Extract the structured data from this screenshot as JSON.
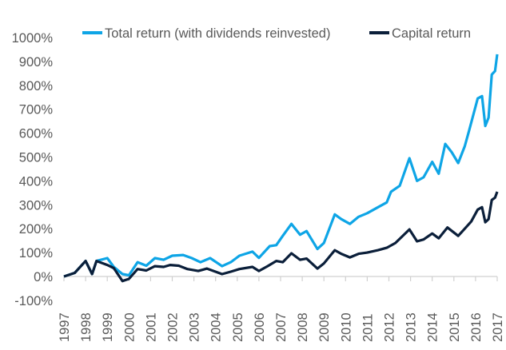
{
  "chart_data": {
    "type": "line",
    "title": "",
    "xlabel": "",
    "ylabel": "",
    "xlim": [
      1997,
      2017
    ],
    "ylim": [
      -100,
      1000
    ],
    "y_ticks": [
      -100,
      0,
      100,
      200,
      300,
      400,
      500,
      600,
      700,
      800,
      900,
      1000
    ],
    "y_tick_labels": [
      "-100%",
      "0%",
      "100%",
      "200%",
      "300%",
      "400%",
      "500%",
      "600%",
      "700%",
      "800%",
      "900%",
      "1000%"
    ],
    "x_tick_labels": [
      "1997",
      "1998",
      "1999",
      "2000",
      "2001",
      "2002",
      "2003",
      "2004",
      "2005",
      "2006",
      "2007",
      "2008",
      "2009",
      "2010",
      "2011",
      "2012",
      "2013",
      "2014",
      "2015",
      "2016",
      "2017"
    ],
    "grid": false,
    "legend_position": "top",
    "series": [
      {
        "name": "Total return (with dividends reinvested)",
        "color": "#0ea5e6",
        "x": [
          1997.0,
          1997.5,
          1998.0,
          1998.3,
          1998.5,
          1999.0,
          1999.3,
          1999.7,
          2000.0,
          2000.4,
          2000.8,
          2001.2,
          2001.6,
          2002.0,
          2002.5,
          2002.9,
          2003.3,
          2003.75,
          2004.3,
          2004.7,
          2005.1,
          2005.7,
          2006.0,
          2006.5,
          2006.8,
          2007.1,
          2007.5,
          2007.9,
          2008.2,
          2008.7,
          2009.0,
          2009.5,
          2009.8,
          2010.2,
          2010.6,
          2011.0,
          2011.5,
          2011.9,
          2012.1,
          2012.5,
          2012.95,
          2013.3,
          2013.6,
          2014.0,
          2014.3,
          2014.6,
          2014.9,
          2015.2,
          2015.5,
          2015.7,
          2016.1,
          2016.3,
          2016.45,
          2016.6,
          2016.75,
          2016.9,
          2017.0
        ],
        "y": [
          0,
          15,
          65,
          10,
          65,
          77,
          40,
          10,
          5,
          60,
          45,
          77,
          70,
          87,
          90,
          77,
          60,
          77,
          43,
          60,
          87,
          104,
          78,
          127,
          131,
          170,
          220,
          175,
          190,
          115,
          140,
          260,
          240,
          220,
          250,
          265,
          290,
          310,
          355,
          380,
          495,
          400,
          415,
          480,
          430,
          555,
          520,
          475,
          545,
          610,
          745,
          755,
          630,
          665,
          845,
          860,
          930
        ]
      },
      {
        "name": "Capital return",
        "color": "#0b1f3a",
        "x": [
          1997.0,
          1997.5,
          1998.0,
          1998.3,
          1998.5,
          1999.0,
          1999.3,
          1999.7,
          2000.0,
          2000.4,
          2000.8,
          2001.2,
          2001.6,
          2001.9,
          2002.3,
          2002.7,
          2003.2,
          2003.6,
          2004.3,
          2004.7,
          2005.1,
          2005.7,
          2006.0,
          2006.4,
          2006.8,
          2007.1,
          2007.5,
          2007.9,
          2008.2,
          2008.7,
          2009.0,
          2009.5,
          2009.8,
          2010.2,
          2010.6,
          2011.0,
          2011.5,
          2011.9,
          2012.3,
          2012.95,
          2013.3,
          2013.6,
          2014.0,
          2014.3,
          2014.7,
          2015.2,
          2015.5,
          2015.8,
          2016.1,
          2016.3,
          2016.45,
          2016.6,
          2016.75,
          2016.9,
          2017.0
        ],
        "y": [
          0,
          15,
          65,
          10,
          65,
          48,
          35,
          -19,
          -10,
          31,
          25,
          43,
          40,
          48,
          45,
          31,
          23,
          33,
          10,
          20,
          31,
          40,
          23,
          43,
          65,
          60,
          97,
          70,
          75,
          33,
          55,
          110,
          95,
          80,
          95,
          100,
          110,
          120,
          140,
          197,
          147,
          155,
          180,
          160,
          205,
          170,
          200,
          230,
          280,
          290,
          227,
          240,
          320,
          330,
          355
        ]
      }
    ]
  }
}
